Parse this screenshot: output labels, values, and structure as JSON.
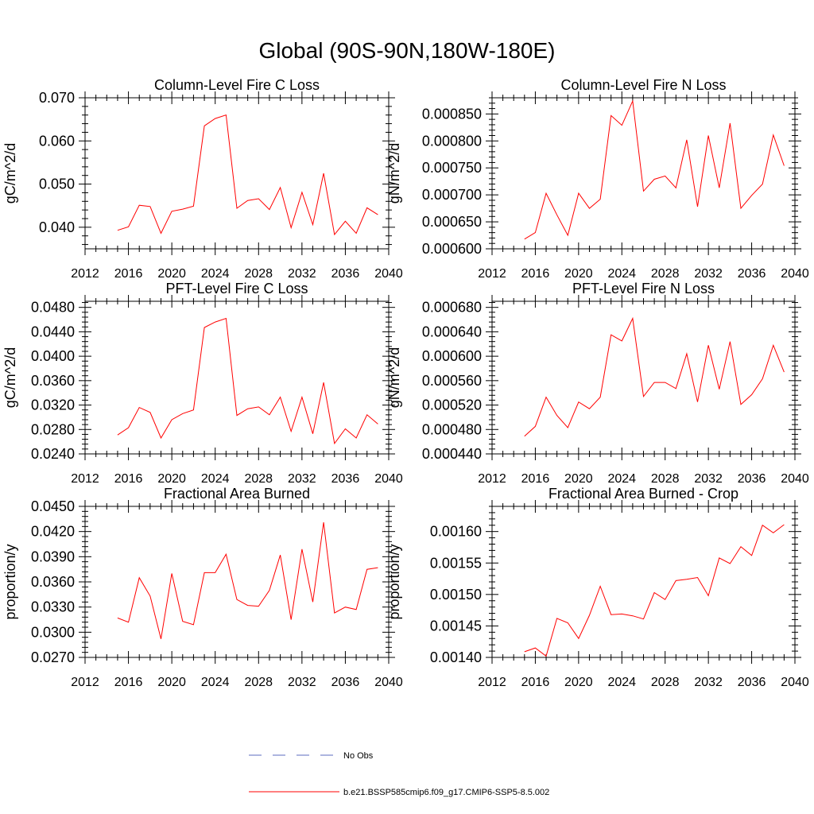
{
  "title": "Global (90S-90N,180W-180E)",
  "line_color": "#ff0000",
  "obs_color": "#5b6bbf",
  "legend": {
    "obs_label": "No Obs",
    "model_label": "b.e21.BSSP585cmip6.f09_g17.CMIP6-SSP5-8.5.002"
  },
  "chart_data": [
    {
      "type": "line",
      "title": "Column-Level Fire C Loss",
      "ylabel": "gC/m^2/d",
      "xlim": [
        2012,
        2040
      ],
      "xticks": [
        "2012",
        "2016",
        "2020",
        "2024",
        "2028",
        "2032",
        "2036",
        "2040"
      ],
      "ylim": [
        0.035,
        0.07
      ],
      "yticks": [
        "0.040",
        "0.050",
        "0.060",
        "0.070"
      ],
      "x": [
        2015,
        2016,
        2017,
        2018,
        2019,
        2020,
        2021,
        2022,
        2023,
        2024,
        2025,
        2026,
        2027,
        2028,
        2029,
        2030,
        2031,
        2032,
        2033,
        2034,
        2035,
        2036,
        2037,
        2038,
        2039
      ],
      "series": [
        {
          "values": [
            0.0393,
            0.0401,
            0.0451,
            0.0448,
            0.0386,
            0.0437,
            0.0442,
            0.0449,
            0.0635,
            0.0652,
            0.066,
            0.0444,
            0.0462,
            0.0466,
            0.0441,
            0.0492,
            0.0399,
            0.0481,
            0.0406,
            0.0525,
            0.0383,
            0.0414,
            0.0386,
            0.0445,
            0.0429
          ]
        }
      ]
    },
    {
      "type": "line",
      "title": "Column-Level Fire N Loss",
      "ylabel": "gN/m^2/d",
      "xlim": [
        2012,
        2040
      ],
      "xticks": [
        "2012",
        "2016",
        "2020",
        "2024",
        "2028",
        "2032",
        "2036",
        "2040"
      ],
      "ylim": [
        0.0006,
        0.00088
      ],
      "yticks": [
        "0.000600",
        "0.000650",
        "0.000700",
        "0.000750",
        "0.000800",
        "0.000850"
      ],
      "x": [
        2015,
        2016,
        2017,
        2018,
        2019,
        2020,
        2021,
        2022,
        2023,
        2024,
        2025,
        2026,
        2027,
        2028,
        2029,
        2030,
        2031,
        2032,
        2033,
        2034,
        2035,
        2036,
        2037,
        2038,
        2039
      ],
      "series": [
        {
          "values": [
            0.000618,
            0.00063,
            0.000703,
            0.000663,
            0.000625,
            0.000703,
            0.000675,
            0.000692,
            0.000847,
            0.000829,
            0.000874,
            0.000707,
            0.000729,
            0.000735,
            0.000713,
            0.000802,
            0.000678,
            0.00081,
            0.000713,
            0.000833,
            0.000675,
            0.000699,
            0.00072,
            0.000811,
            0.000754
          ]
        }
      ]
    },
    {
      "type": "line",
      "title": "PFT-Level Fire C Loss",
      "ylabel": "gC/m^2/d",
      "xlim": [
        2012,
        2040
      ],
      "xticks": [
        "2012",
        "2016",
        "2020",
        "2024",
        "2028",
        "2032",
        "2036",
        "2040"
      ],
      "ylim": [
        0.024,
        0.049
      ],
      "yticks": [
        "0.0240",
        "0.0280",
        "0.0320",
        "0.0360",
        "0.0400",
        "0.0440",
        "0.0480"
      ],
      "x": [
        2015,
        2016,
        2017,
        2018,
        2019,
        2020,
        2021,
        2022,
        2023,
        2024,
        2025,
        2026,
        2027,
        2028,
        2029,
        2030,
        2031,
        2032,
        2033,
        2034,
        2035,
        2036,
        2037,
        2038,
        2039
      ],
      "series": [
        {
          "values": [
            0.0271,
            0.0283,
            0.0316,
            0.0308,
            0.0266,
            0.0296,
            0.0306,
            0.0312,
            0.0447,
            0.0456,
            0.0462,
            0.0303,
            0.0314,
            0.0317,
            0.0304,
            0.0333,
            0.0277,
            0.0333,
            0.0273,
            0.0357,
            0.0257,
            0.0281,
            0.0266,
            0.0304,
            0.0289
          ]
        }
      ]
    },
    {
      "type": "line",
      "title": "PFT-Level Fire N Loss",
      "ylabel": "gN/m^2/d",
      "xlim": [
        2012,
        2040
      ],
      "xticks": [
        "2012",
        "2016",
        "2020",
        "2024",
        "2028",
        "2032",
        "2036",
        "2040"
      ],
      "ylim": [
        0.00044,
        0.00069
      ],
      "yticks": [
        "0.000440",
        "0.000480",
        "0.000520",
        "0.000560",
        "0.000600",
        "0.000640",
        "0.000680"
      ],
      "x": [
        2015,
        2016,
        2017,
        2018,
        2019,
        2020,
        2021,
        2022,
        2023,
        2024,
        2025,
        2026,
        2027,
        2028,
        2029,
        2030,
        2031,
        2032,
        2033,
        2034,
        2035,
        2036,
        2037,
        2038,
        2039
      ],
      "series": [
        {
          "values": [
            0.000469,
            0.000485,
            0.000533,
            0.000503,
            0.000483,
            0.000525,
            0.000514,
            0.000533,
            0.000635,
            0.000625,
            0.000662,
            0.000534,
            0.000557,
            0.000557,
            0.000547,
            0.000604,
            0.000525,
            0.000618,
            0.000546,
            0.000624,
            0.000521,
            0.000537,
            0.000563,
            0.000618,
            0.000574
          ]
        }
      ]
    },
    {
      "type": "line",
      "title": "Fractional Area Burned",
      "ylabel": "proportion/y",
      "xlim": [
        2012,
        2040
      ],
      "xticks": [
        "2012",
        "2016",
        "2020",
        "2024",
        "2028",
        "2032",
        "2036",
        "2040"
      ],
      "ylim": [
        0.027,
        0.045
      ],
      "yticks": [
        "0.0270",
        "0.0300",
        "0.0330",
        "0.0360",
        "0.0390",
        "0.0420",
        "0.0450"
      ],
      "x": [
        2015,
        2016,
        2017,
        2018,
        2019,
        2020,
        2021,
        2022,
        2023,
        2024,
        2025,
        2026,
        2027,
        2028,
        2029,
        2030,
        2031,
        2032,
        2033,
        2034,
        2035,
        2036,
        2037,
        2038,
        2039
      ],
      "series": [
        {
          "values": [
            0.0317,
            0.0312,
            0.0365,
            0.0343,
            0.0292,
            0.037,
            0.0313,
            0.0309,
            0.0371,
            0.0371,
            0.0393,
            0.0339,
            0.0332,
            0.0331,
            0.035,
            0.0392,
            0.0315,
            0.0399,
            0.0336,
            0.0431,
            0.0323,
            0.033,
            0.0327,
            0.0375,
            0.0377
          ]
        }
      ]
    },
    {
      "type": "line",
      "title": "Fractional Area Burned - Crop",
      "ylabel": "proportion/y",
      "xlim": [
        2012,
        2040
      ],
      "xticks": [
        "2012",
        "2016",
        "2020",
        "2024",
        "2028",
        "2032",
        "2036",
        "2040"
      ],
      "ylim": [
        0.0014,
        0.00164
      ],
      "yticks": [
        "0.00140",
        "0.00145",
        "0.00150",
        "0.00155",
        "0.00160"
      ],
      "x": [
        2015,
        2016,
        2017,
        2018,
        2019,
        2020,
        2021,
        2022,
        2023,
        2024,
        2025,
        2026,
        2027,
        2028,
        2029,
        2030,
        2031,
        2032,
        2033,
        2034,
        2035,
        2036,
        2037,
        2038,
        2039
      ],
      "series": [
        {
          "values": [
            0.001409,
            0.001415,
            0.001402,
            0.001462,
            0.001455,
            0.00143,
            0.001467,
            0.001513,
            0.001468,
            0.001469,
            0.001466,
            0.001461,
            0.001503,
            0.001492,
            0.001522,
            0.001524,
            0.001527,
            0.001498,
            0.001558,
            0.001549,
            0.001576,
            0.001562,
            0.00161,
            0.001598,
            0.001611
          ]
        }
      ]
    }
  ]
}
